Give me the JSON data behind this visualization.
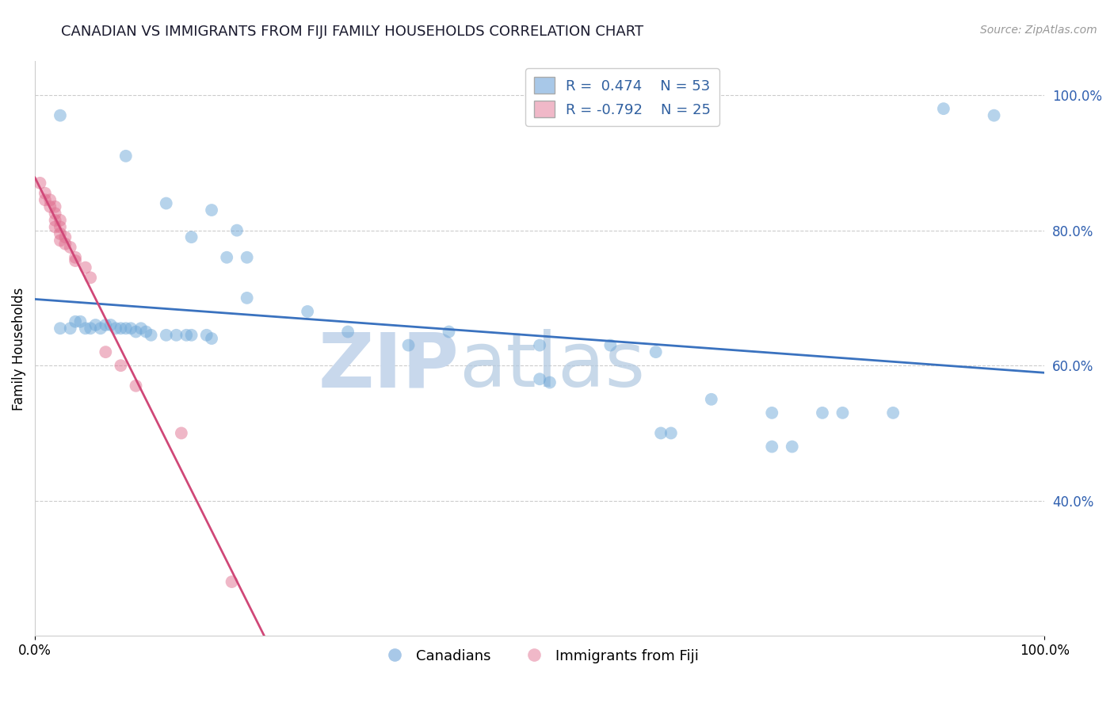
{
  "title": "CANADIAN VS IMMIGRANTS FROM FIJI FAMILY HOUSEHOLDS CORRELATION CHART",
  "source_text": "Source: ZipAtlas.com",
  "ylabel": "Family Households",
  "r_blue": 0.474,
  "n_blue": 53,
  "r_pink": -0.792,
  "n_pink": 25,
  "blue_points": [
    [
      0.025,
      0.97
    ],
    [
      0.09,
      0.91
    ],
    [
      0.13,
      0.84
    ],
    [
      0.155,
      0.79
    ],
    [
      0.175,
      0.83
    ],
    [
      0.19,
      0.76
    ],
    [
      0.2,
      0.8
    ],
    [
      0.21,
      0.76
    ],
    [
      0.025,
      0.655
    ],
    [
      0.035,
      0.655
    ],
    [
      0.04,
      0.665
    ],
    [
      0.045,
      0.665
    ],
    [
      0.05,
      0.655
    ],
    [
      0.055,
      0.655
    ],
    [
      0.06,
      0.66
    ],
    [
      0.065,
      0.655
    ],
    [
      0.07,
      0.66
    ],
    [
      0.075,
      0.66
    ],
    [
      0.08,
      0.655
    ],
    [
      0.085,
      0.655
    ],
    [
      0.09,
      0.655
    ],
    [
      0.095,
      0.655
    ],
    [
      0.1,
      0.65
    ],
    [
      0.105,
      0.655
    ],
    [
      0.11,
      0.65
    ],
    [
      0.115,
      0.645
    ],
    [
      0.13,
      0.645
    ],
    [
      0.14,
      0.645
    ],
    [
      0.15,
      0.645
    ],
    [
      0.155,
      0.645
    ],
    [
      0.17,
      0.645
    ],
    [
      0.175,
      0.64
    ],
    [
      0.21,
      0.7
    ],
    [
      0.27,
      0.68
    ],
    [
      0.31,
      0.65
    ],
    [
      0.37,
      0.63
    ],
    [
      0.41,
      0.65
    ],
    [
      0.5,
      0.63
    ],
    [
      0.5,
      0.58
    ],
    [
      0.51,
      0.575
    ],
    [
      0.57,
      0.63
    ],
    [
      0.615,
      0.62
    ],
    [
      0.62,
      0.5
    ],
    [
      0.63,
      0.5
    ],
    [
      0.67,
      0.55
    ],
    [
      0.73,
      0.53
    ],
    [
      0.73,
      0.48
    ],
    [
      0.75,
      0.48
    ],
    [
      0.78,
      0.53
    ],
    [
      0.8,
      0.53
    ],
    [
      0.85,
      0.53
    ],
    [
      0.9,
      0.98
    ],
    [
      0.95,
      0.97
    ]
  ],
  "pink_points": [
    [
      0.005,
      0.87
    ],
    [
      0.01,
      0.855
    ],
    [
      0.01,
      0.845
    ],
    [
      0.015,
      0.845
    ],
    [
      0.015,
      0.835
    ],
    [
      0.02,
      0.835
    ],
    [
      0.02,
      0.825
    ],
    [
      0.02,
      0.815
    ],
    [
      0.02,
      0.805
    ],
    [
      0.025,
      0.815
    ],
    [
      0.025,
      0.805
    ],
    [
      0.025,
      0.795
    ],
    [
      0.025,
      0.785
    ],
    [
      0.03,
      0.79
    ],
    [
      0.03,
      0.78
    ],
    [
      0.035,
      0.775
    ],
    [
      0.04,
      0.76
    ],
    [
      0.04,
      0.755
    ],
    [
      0.05,
      0.745
    ],
    [
      0.055,
      0.73
    ],
    [
      0.07,
      0.62
    ],
    [
      0.085,
      0.6
    ],
    [
      0.1,
      0.57
    ],
    [
      0.145,
      0.5
    ],
    [
      0.195,
      0.28
    ]
  ],
  "watermark_zip": "ZIP",
  "watermark_atlas": "atlas",
  "watermark_color": "#c8d8ec",
  "background_color": "#ffffff",
  "title_color": "#1a1a2e",
  "blue_dot_color": "#6fa8d8",
  "pink_dot_color": "#e07090",
  "blue_line_color": "#3a72bf",
  "pink_line_color": "#d04878",
  "blue_patch_color": "#a8c8e8",
  "pink_patch_color": "#f0b8c8",
  "grid_color": "#cccccc",
  "legend_text_color": "#3060a0",
  "right_yaxis_color": "#3060b0",
  "source_color": "#999999",
  "bottom_legend_color": "#000000",
  "ylim_min": 0.2,
  "ylim_max": 1.05,
  "grid_vals": [
    0.4,
    0.6,
    0.8,
    1.0
  ]
}
